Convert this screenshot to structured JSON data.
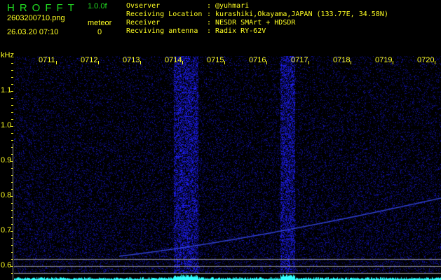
{
  "header": {
    "app_title": "HROFFT",
    "version": "1.0.0f",
    "filename": "2603200710.png",
    "datetime": "26.03.20 07:10",
    "meteor_label": "meteor",
    "meteor_count": "0"
  },
  "info": [
    {
      "label": "Ovserver",
      "value": "@yuhmari"
    },
    {
      "label": "Receiving Location",
      "value": "kurashiki,Okayama,JAPAN (133.77E, 34.58N)"
    },
    {
      "label": "Receiver",
      "value": "NESDR SMArt + HDSDR"
    },
    {
      "label": "Recviving antenna",
      "value": "Radix RY-62V"
    }
  ],
  "y_axis": {
    "unit": "kHz",
    "labels": [
      "1.1",
      "1.0",
      "0.9",
      "0.8",
      "0.7",
      "0.6"
    ]
  },
  "time_labels": [
    "0711",
    "0712",
    "0713",
    "0714",
    "0715",
    "0716",
    "0717",
    "0718",
    "0719",
    "0720"
  ],
  "colors": {
    "text": "#ffff22",
    "title": "#22dd22",
    "signal": "#2233ff",
    "level": "#33ffff"
  }
}
